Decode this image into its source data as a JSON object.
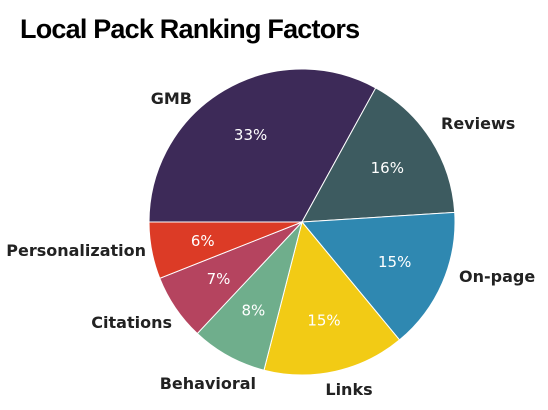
{
  "chart_data": {
    "type": "pie",
    "title": "Local Pack Ranking Factors",
    "slices": [
      {
        "label": "GMB",
        "value": 33,
        "display": "33%",
        "color": "#3d2a58"
      },
      {
        "label": "Reviews",
        "value": 16,
        "display": "16%",
        "color": "#3d5b60"
      },
      {
        "label": "On-page",
        "value": 15,
        "display": "15%",
        "color": "#2f88b1"
      },
      {
        "label": "Links",
        "value": 15,
        "display": "15%",
        "color": "#f2cb15"
      },
      {
        "label": "Behavioral",
        "value": 8,
        "display": "8%",
        "color": "#6fae8c"
      },
      {
        "label": "Citations",
        "value": 7,
        "display": "7%",
        "color": "#b5445f"
      },
      {
        "label": "Personalization",
        "value": 6,
        "display": "6%",
        "color": "#dc3b26"
      }
    ],
    "legend": "none"
  }
}
